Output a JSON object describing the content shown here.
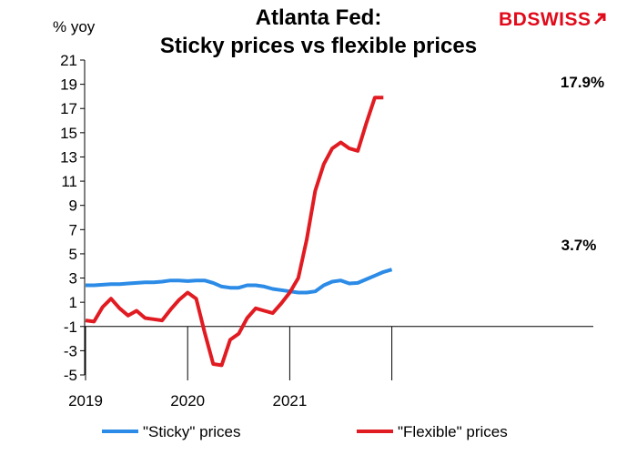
{
  "header": {
    "title_line1": "Atlanta Fed:",
    "title_line2": "Sticky prices vs flexible prices",
    "unit_label": "% yoy"
  },
  "logo": {
    "part1": "BD",
    "part2": "SWISS"
  },
  "colors": {
    "sticky": "#2b8be6",
    "flexible": "#e11b22",
    "axis": "#000000"
  },
  "chart_data": {
    "type": "line",
    "title": "Atlanta Fed: Sticky prices vs flexible prices",
    "ylabel": "% yoy",
    "ylim": [
      -5,
      21
    ],
    "yticks": [
      21,
      19,
      17,
      15,
      13,
      11,
      9,
      7,
      5,
      3,
      1,
      -1,
      -3,
      -5
    ],
    "xticks": [
      "2019",
      "2020",
      "2021"
    ],
    "x_start": "2019-01",
    "series": [
      {
        "name": "\"Sticky\" prices",
        "values": [
          2.4,
          2.4,
          2.45,
          2.5,
          2.5,
          2.55,
          2.6,
          2.65,
          2.65,
          2.7,
          2.8,
          2.8,
          2.75,
          2.8,
          2.8,
          2.6,
          2.3,
          2.2,
          2.2,
          2.4,
          2.4,
          2.3,
          2.1,
          2.0,
          1.9,
          1.8,
          1.8,
          1.9,
          2.4,
          2.7,
          2.8,
          2.55,
          2.6,
          2.9,
          3.2,
          3.5,
          3.7
        ],
        "end_label": "3.7%"
      },
      {
        "name": "\"Flexible\" prices",
        "values": [
          -0.5,
          -0.6,
          0.6,
          1.3,
          0.5,
          -0.1,
          0.3,
          -0.3,
          -0.4,
          -0.5,
          0.4,
          1.2,
          1.8,
          1.3,
          -1.5,
          -4.1,
          -4.2,
          -2.1,
          -1.6,
          -0.3,
          0.5,
          0.3,
          0.1,
          0.9,
          1.8,
          3.0,
          6.2,
          10.2,
          12.4,
          13.7,
          14.2,
          13.7,
          13.5,
          15.8,
          17.9,
          17.9
        ],
        "end_label": "17.9%"
      }
    ],
    "legend": "bottom"
  }
}
